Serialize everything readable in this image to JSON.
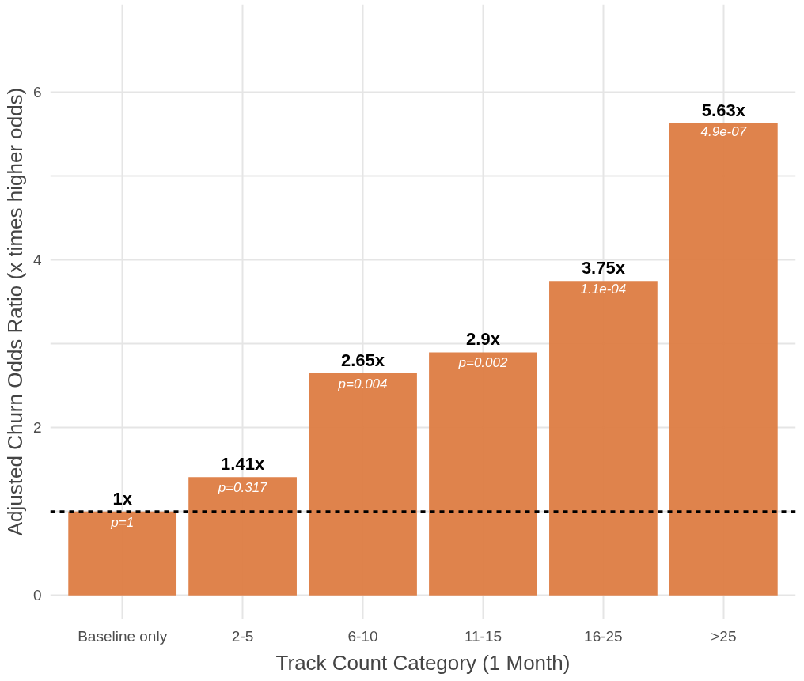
{
  "chart_data": {
    "type": "bar",
    "xlabel": "Track Count Category (1 Month)",
    "ylabel": "Adjusted Churn Odds Ratio (x times higher odds)",
    "categories": [
      "Baseline only",
      "2-5",
      "6-10",
      "11-15",
      "16-25",
      ">25"
    ],
    "values": [
      1,
      1.41,
      2.65,
      2.9,
      3.75,
      5.63
    ],
    "color": "#dd7c42",
    "value_labels": [
      "1x",
      "1.41x",
      "2.65x",
      "2.9x",
      "3.75x",
      "5.63x"
    ],
    "annotations": [
      {
        "text": "p=1",
        "x": "Baseline only",
        "y": 1
      },
      {
        "text": "p=0.317",
        "x": "2-5",
        "y": 1.41
      },
      {
        "text": "p=0.004",
        "x": "6-10",
        "y": 2.65
      },
      {
        "text": "p=0.002",
        "x": "11-15",
        "y": 2.9
      },
      {
        "text": "1.1e-04",
        "x": "16-25",
        "y": 3.75
      },
      {
        "text": "4.9e-07",
        "x": ">25",
        "y": 5.63
      }
    ],
    "ylim": [
      -0.28,
      7.05
    ],
    "yticks": [
      0,
      {
        "value": 1,
        "label": null
      },
      2,
      {
        "value": 3,
        "label": null
      },
      4,
      {
        "value": 5,
        "label": null
      },
      6
    ],
    "ref_lines": [
      {
        "axis": "y",
        "value": 1,
        "color": "#000000",
        "line_style": "dashed"
      }
    ],
    "grid": true
  }
}
